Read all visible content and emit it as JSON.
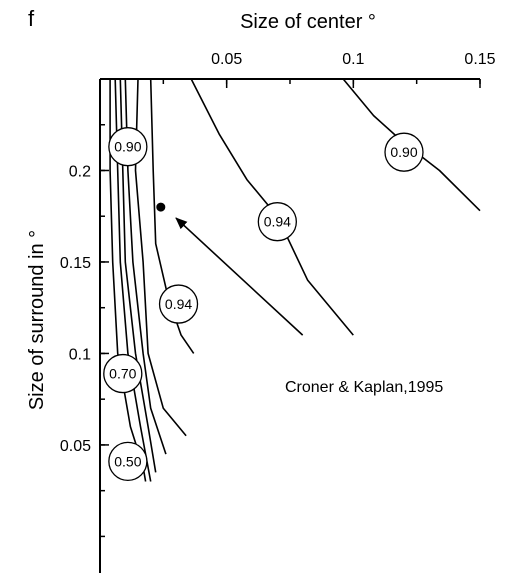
{
  "chart_data": {
    "type": "line",
    "panel_label": "f",
    "xlabel": "Size of center °",
    "ylabel": "Size of surround in °",
    "xlim": [
      0,
      0.15
    ],
    "ylim": [
      -0.02,
      0.25
    ],
    "x_axis_position": "top",
    "x_ticks": [
      {
        "value": 0.05,
        "label": "0.05"
      },
      {
        "value": 0.1,
        "label": "0.1"
      },
      {
        "value": 0.15,
        "label": "0.15"
      }
    ],
    "y_ticks": [
      {
        "value": 0.05,
        "label": "0.05"
      },
      {
        "value": 0.1,
        "label": "0.1"
      },
      {
        "value": 0.15,
        "label": "0.15"
      },
      {
        "value": 0.2,
        "label": "0.2"
      }
    ],
    "series": [
      {
        "level": "0.50",
        "points": [
          [
            0.004,
            0.25
          ],
          [
            0.004,
            0.2
          ],
          [
            0.005,
            0.15
          ],
          [
            0.007,
            0.1
          ],
          [
            0.012,
            0.06
          ],
          [
            0.017,
            0.038
          ],
          [
            0.018,
            0.03
          ]
        ]
      },
      {
        "level": "0.70",
        "points": [
          [
            0.006,
            0.25
          ],
          [
            0.007,
            0.2
          ],
          [
            0.008,
            0.15
          ],
          [
            0.011,
            0.1
          ],
          [
            0.016,
            0.06
          ],
          [
            0.02,
            0.03
          ]
        ]
      },
      {
        "level": "",
        "points": [
          [
            0.008,
            0.25
          ],
          [
            0.009,
            0.2
          ],
          [
            0.01,
            0.15
          ],
          [
            0.014,
            0.1
          ],
          [
            0.019,
            0.06
          ],
          [
            0.022,
            0.035
          ]
        ]
      },
      {
        "level": "",
        "points": [
          [
            0.01,
            0.25
          ],
          [
            0.011,
            0.2
          ],
          [
            0.013,
            0.15
          ],
          [
            0.017,
            0.1
          ],
          [
            0.02,
            0.07
          ],
          [
            0.026,
            0.045
          ]
        ]
      },
      {
        "level": "0.90",
        "points": [
          [
            0.015,
            0.25
          ],
          [
            0.014,
            0.2
          ],
          [
            0.017,
            0.15
          ],
          [
            0.019,
            0.1
          ],
          [
            0.025,
            0.07
          ],
          [
            0.034,
            0.055
          ]
        ]
      },
      {
        "level": "0.94",
        "points": [
          [
            0.02,
            0.25
          ],
          [
            0.021,
            0.2
          ],
          [
            0.022,
            0.16
          ],
          [
            0.027,
            0.13
          ],
          [
            0.032,
            0.11
          ],
          [
            0.037,
            0.1
          ]
        ]
      },
      {
        "level": "0.94",
        "points": [
          [
            0.036,
            0.25
          ],
          [
            0.047,
            0.22
          ],
          [
            0.058,
            0.195
          ],
          [
            0.07,
            0.175
          ],
          [
            0.082,
            0.14
          ],
          [
            0.1,
            0.11
          ]
        ]
      },
      {
        "level": "0.90",
        "points": [
          [
            0.096,
            0.25
          ],
          [
            0.108,
            0.23
          ],
          [
            0.12,
            0.215
          ],
          [
            0.134,
            0.2
          ],
          [
            0.15,
            0.178
          ]
        ]
      }
    ],
    "contour_labels": [
      {
        "text": "0.90",
        "x": 0.011,
        "y": 0.213
      },
      {
        "text": "0.94",
        "x": 0.031,
        "y": 0.127
      },
      {
        "text": "0.94",
        "x": 0.07,
        "y": 0.172
      },
      {
        "text": "0.90",
        "x": 0.12,
        "y": 0.21
      },
      {
        "text": "0.70",
        "x": 0.009,
        "y": 0.089
      },
      {
        "text": "0.50",
        "x": 0.011,
        "y": 0.041
      }
    ],
    "marker": {
      "x": 0.024,
      "y": 0.18
    },
    "annotation": {
      "text": "Croner & Kaplan,1995",
      "arrow_from": [
        0.08,
        0.11
      ],
      "arrow_to": [
        0.03,
        0.174
      ]
    },
    "grid": false,
    "legend": "none"
  }
}
